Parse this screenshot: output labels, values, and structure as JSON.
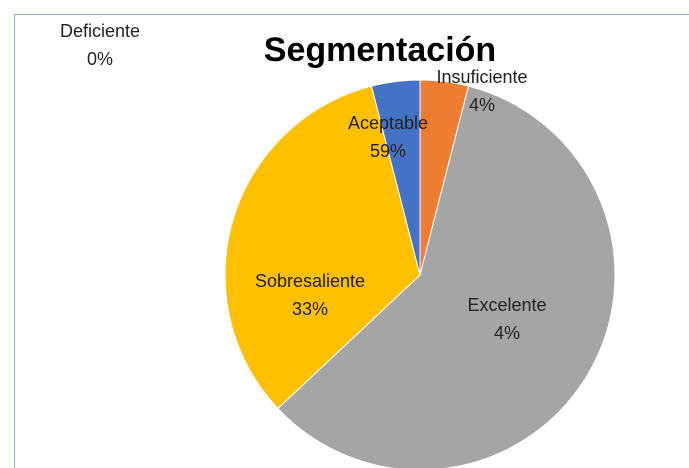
{
  "chart_data": {
    "type": "pie",
    "title": "Segmentación",
    "categories": [
      "Deficiente",
      "Insuficiente",
      "Aceptable",
      "Sobresaliente",
      "Excelente"
    ],
    "values": [
      0,
      4,
      59,
      33,
      4
    ],
    "value_labels": [
      "0%",
      "4%",
      "59%",
      "33%",
      "4%"
    ],
    "colors": [
      "#5b9bd5",
      "#ed7d31",
      "#a5a5a5",
      "#ffc000",
      "#4472c4"
    ]
  }
}
